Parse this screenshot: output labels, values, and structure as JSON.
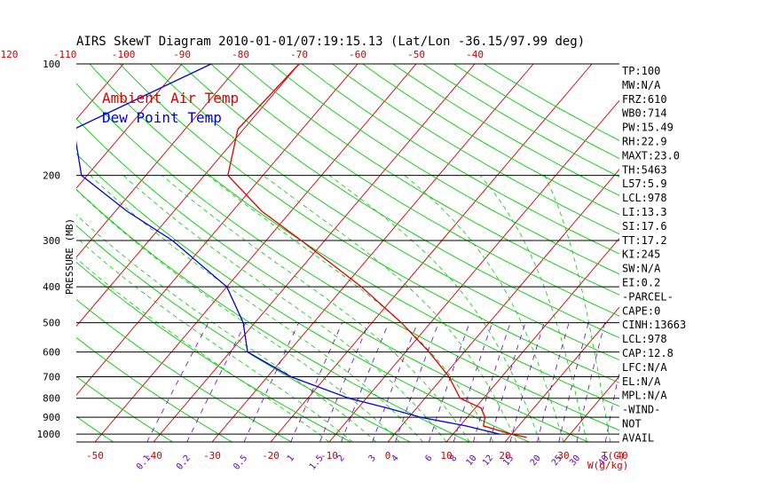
{
  "title": "AIRS SkewT Diagram 2010-01-01/07:19:15.13 (Lat/Lon -36.15/97.99 deg)",
  "legend": {
    "ambient": "Ambient Air Temp",
    "dewpoint": "Dew Point Temp"
  },
  "colors": {
    "ambient": "#dd0000",
    "dewpoint": "#0000dd",
    "isotherm": "#cc0000",
    "dry_adiabat": "#00cc00",
    "moist_adiabat": "#00cc00",
    "mixing_ratio": "#6600cc",
    "axis_text": "#000000",
    "bottom_text": "#cc0000"
  },
  "stats": [
    "TP:100",
    "MW:N/A",
    "FRZ:610",
    "WB0:714",
    "PW:15.49",
    "RH:22.9",
    "MAXT:23.0",
    "TH:5463",
    "L57:5.9",
    "LCL:978",
    "LI:13.3",
    "SI:17.6",
    "TT:17.2",
    "KI:245",
    "SW:N/A",
    "EI:0.2",
    "-PARCEL-",
    "CAPE:0",
    "CINH:13663",
    "LCL:978",
    "CAP:12.8",
    "LFC:N/A",
    "EL:N/A",
    "MPL:N/A",
    "-WIND-",
    "NOT",
    "AVAIL"
  ],
  "chart_data": {
    "type": "line",
    "title": "AIRS SkewT Diagram 2010-01-01/07:19:15.13 (Lat/Lon -36.15/97.99 deg)",
    "ylabel": "PRESSURE (MB)",
    "yscale": "log",
    "ylim": [
      1050,
      100
    ],
    "pressure_ticks": [
      100,
      200,
      300,
      400,
      500,
      600,
      700,
      800,
      900,
      1000
    ],
    "pressure_tick_labels": [
      "100",
      "200",
      "300",
      "400",
      "500",
      "600",
      "700",
      "800",
      "900",
      "1000"
    ],
    "top_temp_ticks": [
      -120,
      -110,
      -100,
      -90,
      -80,
      -70,
      -60,
      -50,
      -40
    ],
    "top_temp_tick_labels": [
      "-120",
      "-110",
      "-100",
      "-90",
      "-80",
      "-70",
      "-60",
      "-50",
      "-40"
    ],
    "bottom_temp_ticks": [
      -50,
      -40,
      -30,
      -20,
      -10,
      0,
      10,
      20,
      30,
      40
    ],
    "bottom_temp_tick_labels": [
      "-50",
      "-40",
      "-30",
      "-20",
      "-10",
      "0",
      "10",
      "20",
      "30",
      "40"
    ],
    "bottom_unit_label": "T(C)",
    "mixing_ratio_labels": [
      "0.1",
      "0.2",
      "0.5",
      "1",
      "1.5",
      "2",
      "3",
      "4",
      "6",
      "8",
      "10",
      "12",
      "15",
      "20",
      "25",
      "30",
      "40"
    ],
    "mixing_ratio_unit_label": "W(g/kg)",
    "grid": true,
    "legend_position": "top-left",
    "series": [
      {
        "name": "Ambient Air Temp",
        "points": [
          {
            "p": 100,
            "t": -70
          },
          {
            "p": 150,
            "t": -71
          },
          {
            "p": 200,
            "t": -66
          },
          {
            "p": 250,
            "t": -55
          },
          {
            "p": 300,
            "t": -44
          },
          {
            "p": 400,
            "t": -27
          },
          {
            "p": 500,
            "t": -15
          },
          {
            "p": 600,
            "t": -6
          },
          {
            "p": 700,
            "t": 1
          },
          {
            "p": 800,
            "t": 6
          },
          {
            "p": 850,
            "t": 11
          },
          {
            "p": 900,
            "t": 13
          },
          {
            "p": 950,
            "t": 14
          },
          {
            "p": 1000,
            "t": 20
          },
          {
            "p": 1020,
            "t": 23
          }
        ]
      },
      {
        "name": "Dew Point Temp",
        "points": [
          {
            "p": 100,
            "t": -85
          },
          {
            "p": 150,
            "t": -99
          },
          {
            "p": 200,
            "t": -91
          },
          {
            "p": 250,
            "t": -78
          },
          {
            "p": 300,
            "t": -66
          },
          {
            "p": 400,
            "t": -50
          },
          {
            "p": 500,
            "t": -42
          },
          {
            "p": 600,
            "t": -37
          },
          {
            "p": 700,
            "t": -26
          },
          {
            "p": 800,
            "t": -13
          },
          {
            "p": 850,
            "t": -5
          },
          {
            "p": 900,
            "t": 2
          },
          {
            "p": 950,
            "t": 11
          },
          {
            "p": 1000,
            "t": 18
          }
        ]
      }
    ]
  }
}
